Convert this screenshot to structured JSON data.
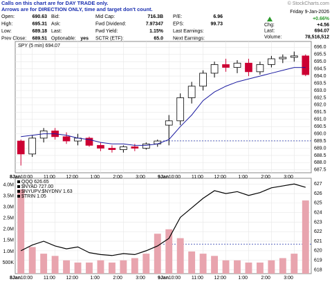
{
  "header": {
    "note": [
      "Calls on this chart are for DAY TRADE only.",
      "Arrows are for DIRECTION ONLY, time and target don't count."
    ],
    "brand": "© StockCharts.com",
    "columns": [
      [
        [
          "Open:",
          "690.63"
        ],
        [
          "High:",
          "695.31"
        ],
        [
          "Low:",
          "689.18"
        ],
        [
          "Prev Close:",
          "689.51"
        ]
      ],
      [
        [
          "Bid:"
        ],
        [
          "Ask:"
        ],
        [
          "Last:"
        ],
        [
          "Optionable:",
          "yes"
        ]
      ],
      [
        [
          "Mid Cap:",
          "716.3B"
        ],
        [
          "Fwd Dividend:",
          "7.97347"
        ],
        [
          "Fwd Yield:",
          "1.15%"
        ],
        [
          "SCTR (ETF):",
          "65.0"
        ]
      ],
      [
        [
          "P/E:",
          "6.96"
        ],
        [
          "EPS:",
          "99.73"
        ],
        [
          "Last Earnings:"
        ],
        [
          "Next Earnings:"
        ]
      ]
    ],
    "date": "Friday 9-Jan-2026",
    "change_pct": "+0.66%",
    "summary": [
      [
        "Chg:",
        "+4.56"
      ],
      [
        "Last:",
        "694.07"
      ],
      [
        "Volume:",
        "78,516,512"
      ]
    ]
  },
  "chart_data": [
    {
      "type": "candlestick",
      "legend": "SPY (5 min) 694.07",
      "categories": [
        "8Jan",
        "10:00",
        null,
        "11:00",
        null,
        "12:00",
        null,
        "1:00",
        null,
        "2:00",
        null,
        "3:00",
        null,
        "9Jan",
        "10:00",
        null,
        "11:00",
        null,
        "12:00",
        null,
        "1:00",
        null,
        "2:00",
        null,
        "3:00",
        null
      ],
      "open": [
        689.5,
        688.6,
        689.7,
        690.2,
        689.8,
        689.5,
        689.7,
        689.2,
        689.0,
        688.9,
        689.1,
        689.0,
        689.3,
        690.6,
        690.9,
        692.5,
        693.3,
        694.2,
        694.8,
        694.6,
        694.9,
        694.3,
        694.8,
        695.2,
        695.3,
        695.4
      ],
      "high": [
        689.6,
        689.9,
        690.4,
        690.4,
        690.1,
        690.0,
        689.8,
        689.4,
        689.2,
        689.2,
        689.3,
        689.4,
        689.6,
        691.3,
        692.8,
        693.6,
        694.4,
        695.0,
        695.2,
        695.1,
        695.2,
        695.0,
        695.4,
        695.5,
        695.7,
        695.5
      ],
      "low": [
        687.8,
        688.4,
        689.4,
        689.6,
        689.3,
        689.2,
        689.1,
        688.8,
        688.7,
        688.7,
        688.8,
        688.9,
        689.1,
        689.2,
        690.6,
        692.1,
        693.0,
        693.9,
        694.3,
        694.2,
        694.0,
        694.1,
        694.6,
        694.9,
        695.0,
        694.0
      ],
      "close": [
        688.6,
        689.7,
        690.2,
        689.8,
        689.5,
        689.7,
        689.2,
        689.0,
        688.9,
        689.1,
        689.0,
        689.3,
        689.5,
        690.9,
        692.5,
        693.3,
        694.2,
        694.8,
        694.6,
        694.9,
        694.3,
        694.8,
        695.2,
        695.3,
        695.4,
        694.1
      ],
      "up_color": "#000000",
      "down_color": "#cc0033",
      "ma": {
        "color": "#1a1aa0",
        "values": [
          689.8,
          689.9,
          690.0,
          690.0,
          689.9,
          689.7,
          689.6,
          689.4,
          689.3,
          689.3,
          689.2,
          689.2,
          689.3,
          689.6,
          690.5,
          691.3,
          692.3,
          692.9,
          693.3,
          693.6,
          693.8,
          694.0,
          694.2,
          694.4,
          694.6,
          694.6
        ]
      },
      "prev_close_line": 689.51,
      "ylim": [
        687.3,
        696.4
      ],
      "yticks": [
        {
          "value": 696,
          "label": "696.0"
        },
        {
          "value": 695.5,
          "label": "695.5"
        },
        {
          "value": 695,
          "label": "695.0"
        },
        {
          "value": 694.5,
          "label": "694.5"
        },
        {
          "value": 694,
          "label": "694.0"
        },
        {
          "value": 693.5,
          "label": "693.5"
        },
        {
          "value": 693,
          "label": "693.0"
        },
        {
          "value": 692.5,
          "label": "692.5"
        },
        {
          "value": 692,
          "label": "692.0"
        },
        {
          "value": 691.5,
          "label": "691.5"
        },
        {
          "value": 691,
          "label": "691.0"
        },
        {
          "value": 690.5,
          "label": "690.5"
        },
        {
          "value": 690,
          "label": "690.0"
        },
        {
          "value": 689.5,
          "label": "689.5"
        },
        {
          "value": 689,
          "label": "689.0"
        },
        {
          "value": 688.5,
          "label": "688.5"
        },
        {
          "value": 688,
          "label": "688.0"
        },
        {
          "value": 687.5,
          "label": "687.5"
        }
      ],
      "grid": true
    },
    {
      "type": "line",
      "legend": [
        "QQQ 626.65",
        "$NYAD 727.00",
        "$NYUPV:$NYDNV 1.63",
        "$TRIN 1.05"
      ],
      "categories": [
        "8Jan",
        "10:00",
        null,
        "11:00",
        null,
        "12:00",
        null,
        "1:00",
        null,
        "2:00",
        null,
        "3:00",
        null,
        "9Jan",
        "10:00",
        null,
        "11:00",
        null,
        "12:00",
        null,
        "1:00",
        null,
        "2:00",
        null,
        "3:00",
        null
      ],
      "series": [
        {
          "name": "QQQ",
          "color": "#000000",
          "values": [
            620.0,
            620.6,
            621.0,
            620.5,
            620.2,
            620.4,
            619.8,
            619.6,
            619.5,
            619.7,
            619.6,
            620.0,
            620.5,
            621.3,
            623.5,
            624.5,
            625.5,
            626.3,
            626.0,
            626.2,
            625.8,
            626.1,
            626.6,
            626.8,
            627.0,
            626.65
          ]
        }
      ],
      "volume": {
        "color": "#e8a4ae",
        "values": [
          3800000,
          1200000,
          900000,
          800000,
          600000,
          500000,
          500000,
          600000,
          500000,
          600000,
          700000,
          900000,
          1800000,
          2000000,
          1600000,
          1000000,
          900000,
          800000,
          600000,
          600000,
          500000,
          500000,
          600000,
          700000,
          900000,
          3300000
        ]
      },
      "prev_close_line": 620.7,
      "ylim": [
        617.6,
        627.6
      ],
      "yticks": [
        627,
        626,
        625,
        624,
        623,
        622,
        621,
        620,
        619,
        618
      ],
      "vlim": [
        0,
        4300000
      ],
      "vticks": [
        {
          "value": 4000000,
          "label": "4.0M"
        },
        {
          "value": 3500000,
          "label": "3.5M"
        },
        {
          "value": 3000000,
          "label": "3.0M"
        },
        {
          "value": 2500000,
          "label": "2.5M"
        },
        {
          "value": 2000000,
          "label": "2.0M"
        },
        {
          "value": 1500000,
          "label": "1.5M"
        },
        {
          "value": 1000000,
          "label": "1.0M"
        },
        {
          "value": 500000,
          "label": "500K"
        }
      ],
      "grid": true
    }
  ]
}
